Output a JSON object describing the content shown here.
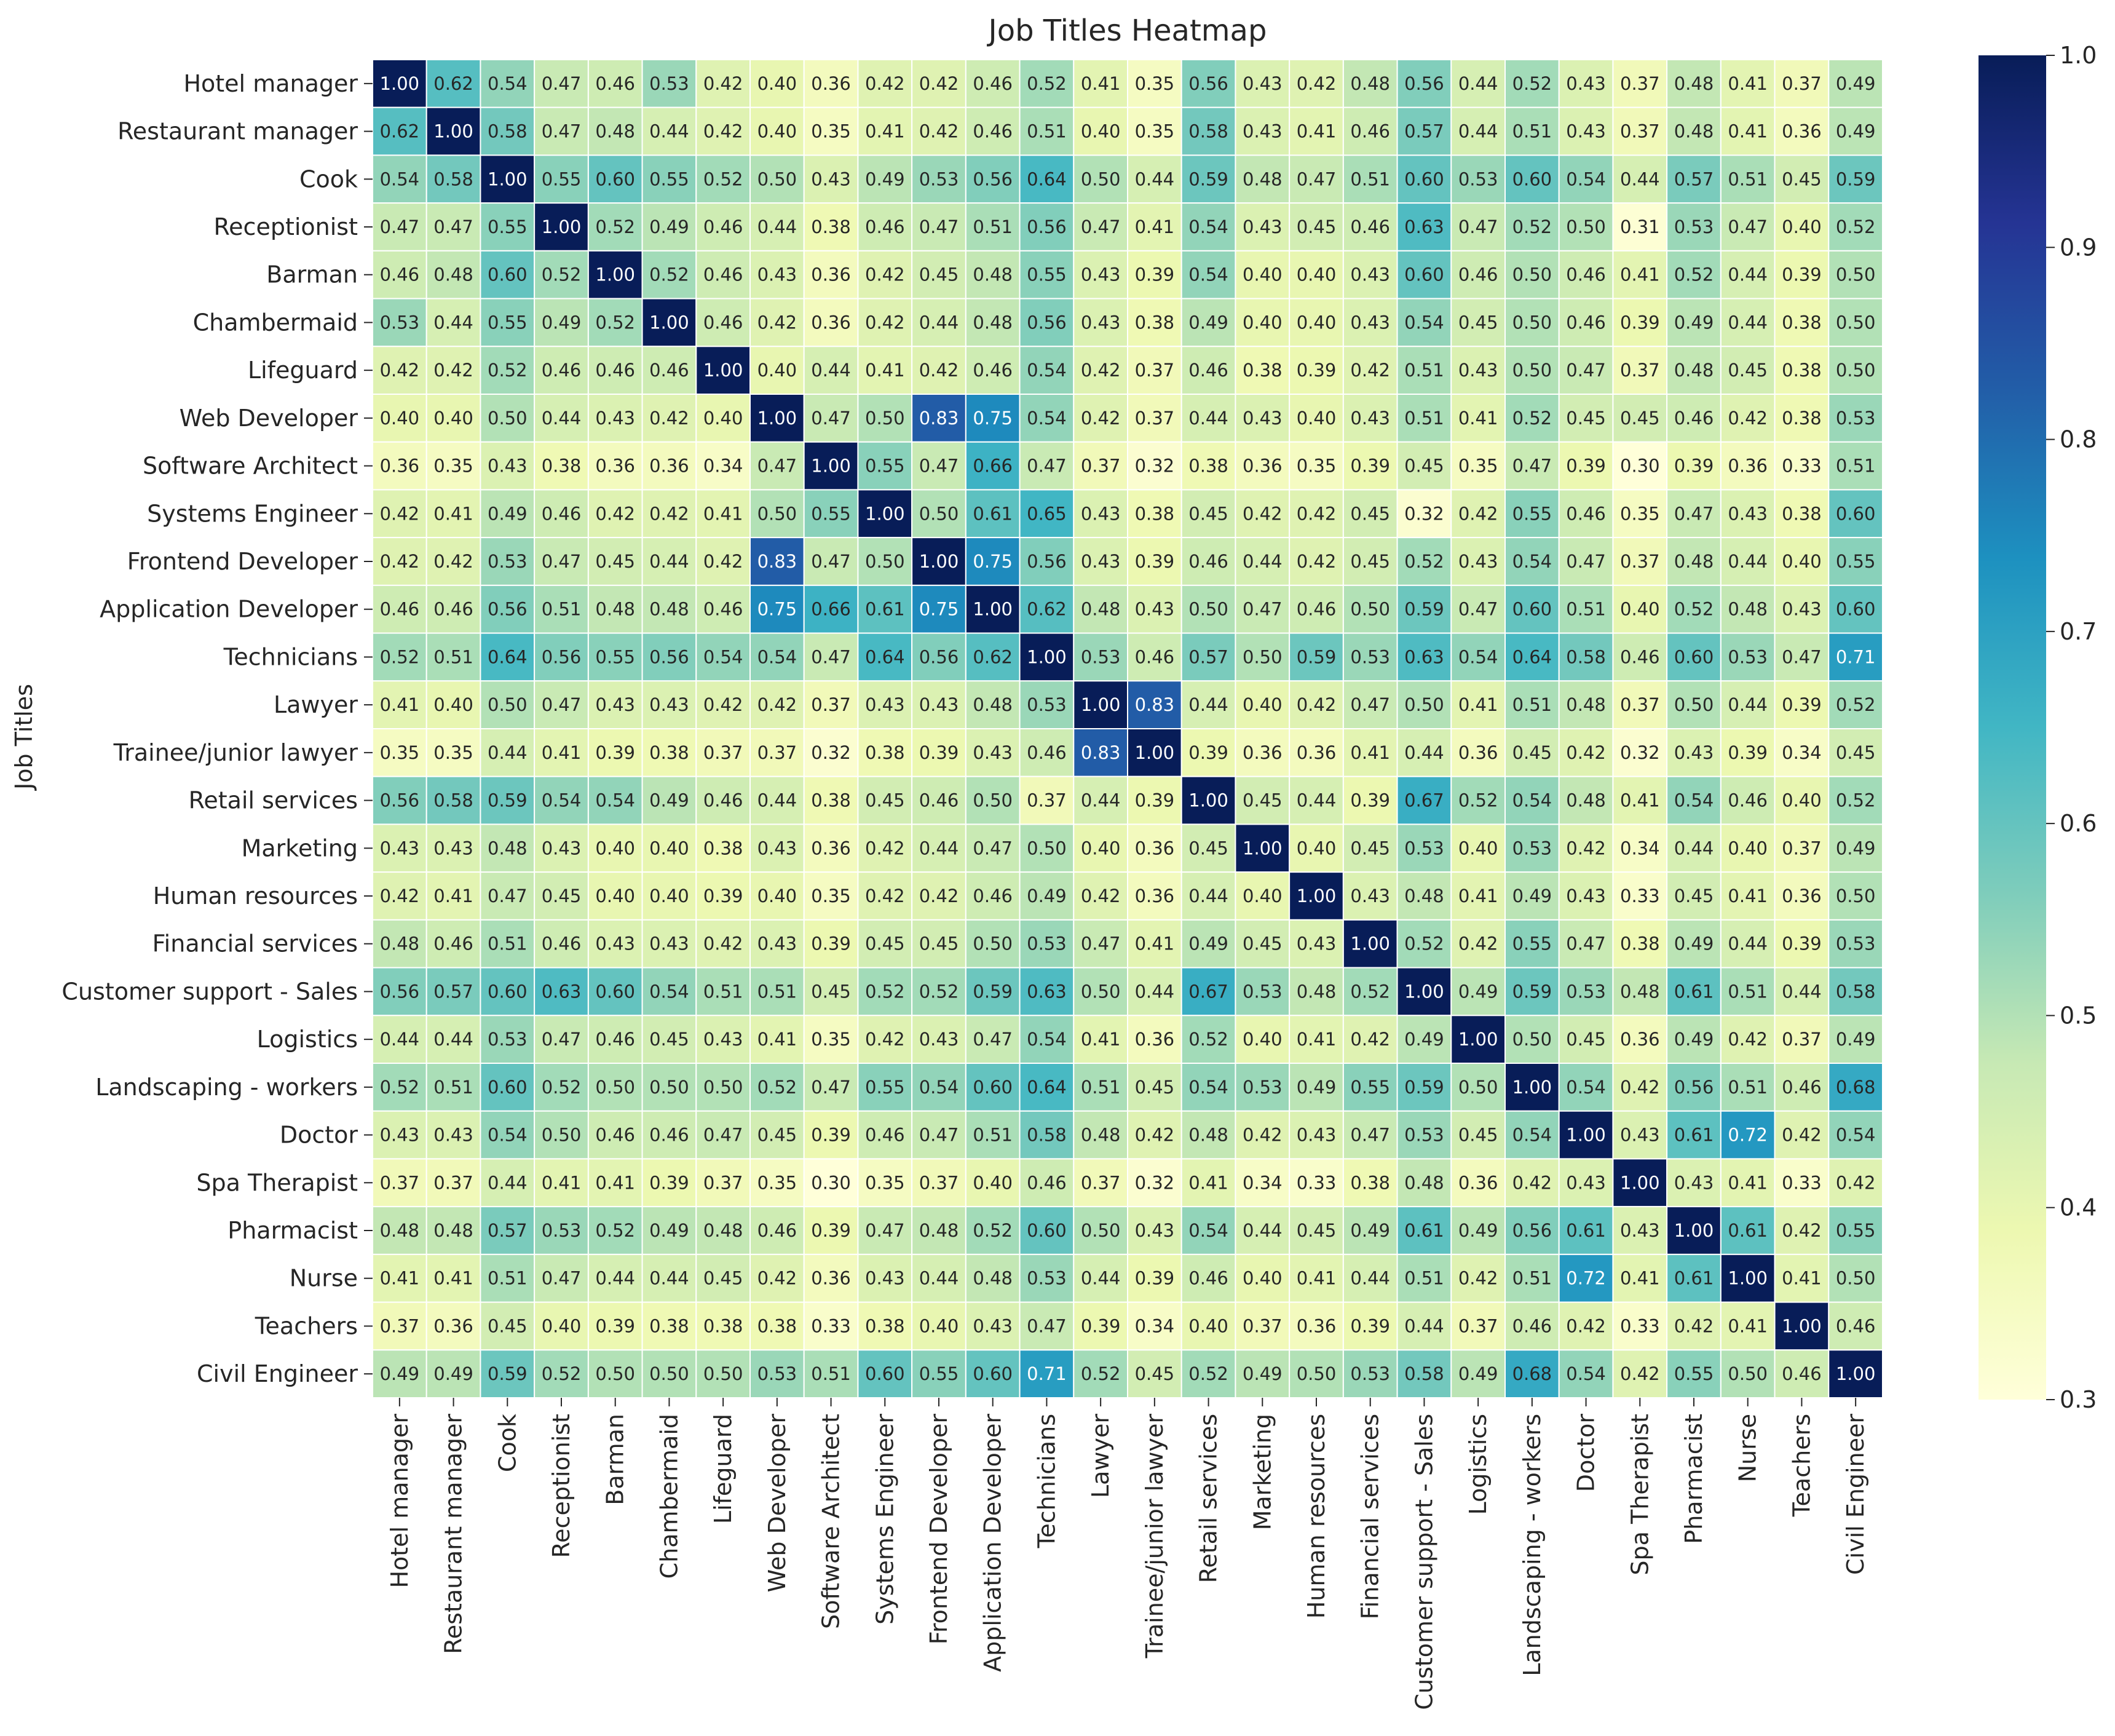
{
  "chart_data": {
    "type": "heatmap",
    "title": "Job Titles Heatmap",
    "ylabel": "Job Titles",
    "xlabel": "",
    "labels": [
      "Hotel manager",
      "Restaurant manager",
      "Cook",
      "Receptionist",
      "Barman",
      "Chambermaid",
      "Lifeguard",
      "Web Developer",
      "Software Architect",
      "Systems Engineer",
      "Frontend Developer",
      "Application Developer",
      "Technicians",
      "Lawyer",
      "Trainee/junior lawyer",
      "Retail services",
      "Marketing",
      "Human resources",
      "Financial services",
      "Customer support - Sales",
      "Logistics",
      "Landscaping - workers",
      "Doctor",
      "Spa Therapist",
      "Pharmacist",
      "Nurse",
      "Teachers",
      "Civil Engineer"
    ],
    "matrix": [
      [
        1.0,
        0.62,
        0.54,
        0.47,
        0.46,
        0.53,
        0.42,
        0.4,
        0.36,
        0.42,
        0.42,
        0.46,
        0.52,
        0.41,
        0.35,
        0.56,
        0.43,
        0.42,
        0.48,
        0.56,
        0.44,
        0.52,
        0.43,
        0.37,
        0.48,
        0.41,
        0.37,
        0.49
      ],
      [
        0.62,
        1.0,
        0.58,
        0.47,
        0.48,
        0.44,
        0.42,
        0.4,
        0.35,
        0.41,
        0.42,
        0.46,
        0.51,
        0.4,
        0.35,
        0.58,
        0.43,
        0.41,
        0.46,
        0.57,
        0.44,
        0.51,
        0.43,
        0.37,
        0.48,
        0.41,
        0.36,
        0.49
      ],
      [
        0.54,
        0.58,
        1.0,
        0.55,
        0.6,
        0.55,
        0.52,
        0.5,
        0.43,
        0.49,
        0.53,
        0.56,
        0.64,
        0.5,
        0.44,
        0.59,
        0.48,
        0.47,
        0.51,
        0.6,
        0.53,
        0.6,
        0.54,
        0.44,
        0.57,
        0.51,
        0.45,
        0.59
      ],
      [
        0.47,
        0.47,
        0.55,
        1.0,
        0.52,
        0.49,
        0.46,
        0.44,
        0.38,
        0.46,
        0.47,
        0.51,
        0.56,
        0.47,
        0.41,
        0.54,
        0.43,
        0.45,
        0.46,
        0.63,
        0.47,
        0.52,
        0.5,
        0.31,
        0.53,
        0.47,
        0.4,
        0.52
      ],
      [
        0.46,
        0.48,
        0.6,
        0.52,
        1.0,
        0.52,
        0.46,
        0.43,
        0.36,
        0.42,
        0.45,
        0.48,
        0.55,
        0.43,
        0.39,
        0.54,
        0.4,
        0.4,
        0.43,
        0.6,
        0.46,
        0.5,
        0.46,
        0.41,
        0.52,
        0.44,
        0.39,
        0.5
      ],
      [
        0.53,
        0.44,
        0.55,
        0.49,
        0.52,
        1.0,
        0.46,
        0.42,
        0.36,
        0.42,
        0.44,
        0.48,
        0.56,
        0.43,
        0.38,
        0.49,
        0.4,
        0.4,
        0.43,
        0.54,
        0.45,
        0.5,
        0.46,
        0.39,
        0.49,
        0.44,
        0.38,
        0.5
      ],
      [
        0.42,
        0.42,
        0.52,
        0.46,
        0.46,
        0.46,
        1.0,
        0.4,
        0.44,
        0.41,
        0.42,
        0.46,
        0.54,
        0.42,
        0.37,
        0.46,
        0.38,
        0.39,
        0.42,
        0.51,
        0.43,
        0.5,
        0.47,
        0.37,
        0.48,
        0.45,
        0.38,
        0.5
      ],
      [
        0.4,
        0.4,
        0.5,
        0.44,
        0.43,
        0.42,
        0.4,
        1.0,
        0.47,
        0.5,
        0.83,
        0.75,
        0.54,
        0.42,
        0.37,
        0.44,
        0.43,
        0.4,
        0.43,
        0.51,
        0.41,
        0.52,
        0.45,
        0.45,
        0.46,
        0.42,
        0.38,
        0.53
      ],
      [
        0.36,
        0.35,
        0.43,
        0.38,
        0.36,
        0.36,
        0.34,
        0.47,
        1.0,
        0.55,
        0.47,
        0.66,
        0.47,
        0.37,
        0.32,
        0.38,
        0.36,
        0.35,
        0.39,
        0.45,
        0.35,
        0.47,
        0.39,
        0.3,
        0.39,
        0.36,
        0.33,
        0.51
      ],
      [
        0.42,
        0.41,
        0.49,
        0.46,
        0.42,
        0.42,
        0.41,
        0.5,
        0.55,
        1.0,
        0.5,
        0.61,
        0.65,
        0.43,
        0.38,
        0.45,
        0.42,
        0.42,
        0.45,
        0.32,
        0.42,
        0.55,
        0.46,
        0.35,
        0.47,
        0.43,
        0.38,
        0.6
      ],
      [
        0.42,
        0.42,
        0.53,
        0.47,
        0.45,
        0.44,
        0.42,
        0.83,
        0.47,
        0.5,
        1.0,
        0.75,
        0.56,
        0.43,
        0.39,
        0.46,
        0.44,
        0.42,
        0.45,
        0.52,
        0.43,
        0.54,
        0.47,
        0.37,
        0.48,
        0.44,
        0.4,
        0.55
      ],
      [
        0.46,
        0.46,
        0.56,
        0.51,
        0.48,
        0.48,
        0.46,
        0.75,
        0.66,
        0.61,
        0.75,
        1.0,
        0.62,
        0.48,
        0.43,
        0.5,
        0.47,
        0.46,
        0.5,
        0.59,
        0.47,
        0.6,
        0.51,
        0.4,
        0.52,
        0.48,
        0.43,
        0.6
      ],
      [
        0.52,
        0.51,
        0.64,
        0.56,
        0.55,
        0.56,
        0.54,
        0.54,
        0.47,
        0.64,
        0.56,
        0.62,
        1.0,
        0.53,
        0.46,
        0.57,
        0.5,
        0.59,
        0.53,
        0.63,
        0.54,
        0.64,
        0.58,
        0.46,
        0.6,
        0.53,
        0.47,
        0.71
      ],
      [
        0.41,
        0.4,
        0.5,
        0.47,
        0.43,
        0.43,
        0.42,
        0.42,
        0.37,
        0.43,
        0.43,
        0.48,
        0.53,
        1.0,
        0.83,
        0.44,
        0.4,
        0.42,
        0.47,
        0.5,
        0.41,
        0.51,
        0.48,
        0.37,
        0.5,
        0.44,
        0.39,
        0.52
      ],
      [
        0.35,
        0.35,
        0.44,
        0.41,
        0.39,
        0.38,
        0.37,
        0.37,
        0.32,
        0.38,
        0.39,
        0.43,
        0.46,
        0.83,
        1.0,
        0.39,
        0.36,
        0.36,
        0.41,
        0.44,
        0.36,
        0.45,
        0.42,
        0.32,
        0.43,
        0.39,
        0.34,
        0.45
      ],
      [
        0.56,
        0.58,
        0.59,
        0.54,
        0.54,
        0.49,
        0.46,
        0.44,
        0.38,
        0.45,
        0.46,
        0.5,
        0.37,
        0.44,
        0.39,
        1.0,
        0.45,
        0.44,
        0.39,
        0.67,
        0.52,
        0.54,
        0.48,
        0.41,
        0.54,
        0.46,
        0.4,
        0.52
      ],
      [
        0.43,
        0.43,
        0.48,
        0.43,
        0.4,
        0.4,
        0.38,
        0.43,
        0.36,
        0.42,
        0.44,
        0.47,
        0.5,
        0.4,
        0.36,
        0.45,
        1.0,
        0.4,
        0.45,
        0.53,
        0.4,
        0.53,
        0.42,
        0.34,
        0.44,
        0.4,
        0.37,
        0.49
      ],
      [
        0.42,
        0.41,
        0.47,
        0.45,
        0.4,
        0.4,
        0.39,
        0.4,
        0.35,
        0.42,
        0.42,
        0.46,
        0.49,
        0.42,
        0.36,
        0.44,
        0.4,
        1.0,
        0.43,
        0.48,
        0.41,
        0.49,
        0.43,
        0.33,
        0.45,
        0.41,
        0.36,
        0.5
      ],
      [
        0.48,
        0.46,
        0.51,
        0.46,
        0.43,
        0.43,
        0.42,
        0.43,
        0.39,
        0.45,
        0.45,
        0.5,
        0.53,
        0.47,
        0.41,
        0.49,
        0.45,
        0.43,
        1.0,
        0.52,
        0.42,
        0.55,
        0.47,
        0.38,
        0.49,
        0.44,
        0.39,
        0.53
      ],
      [
        0.56,
        0.57,
        0.6,
        0.63,
        0.6,
        0.54,
        0.51,
        0.51,
        0.45,
        0.52,
        0.52,
        0.59,
        0.63,
        0.5,
        0.44,
        0.67,
        0.53,
        0.48,
        0.52,
        1.0,
        0.49,
        0.59,
        0.53,
        0.48,
        0.61,
        0.51,
        0.44,
        0.58
      ],
      [
        0.44,
        0.44,
        0.53,
        0.47,
        0.46,
        0.45,
        0.43,
        0.41,
        0.35,
        0.42,
        0.43,
        0.47,
        0.54,
        0.41,
        0.36,
        0.52,
        0.4,
        0.41,
        0.42,
        0.49,
        1.0,
        0.5,
        0.45,
        0.36,
        0.49,
        0.42,
        0.37,
        0.49
      ],
      [
        0.52,
        0.51,
        0.6,
        0.52,
        0.5,
        0.5,
        0.5,
        0.52,
        0.47,
        0.55,
        0.54,
        0.6,
        0.64,
        0.51,
        0.45,
        0.54,
        0.53,
        0.49,
        0.55,
        0.59,
        0.5,
        1.0,
        0.54,
        0.42,
        0.56,
        0.51,
        0.46,
        0.68
      ],
      [
        0.43,
        0.43,
        0.54,
        0.5,
        0.46,
        0.46,
        0.47,
        0.45,
        0.39,
        0.46,
        0.47,
        0.51,
        0.58,
        0.48,
        0.42,
        0.48,
        0.42,
        0.43,
        0.47,
        0.53,
        0.45,
        0.54,
        1.0,
        0.43,
        0.61,
        0.72,
        0.42,
        0.54
      ],
      [
        0.37,
        0.37,
        0.44,
        0.41,
        0.41,
        0.39,
        0.37,
        0.35,
        0.3,
        0.35,
        0.37,
        0.4,
        0.46,
        0.37,
        0.32,
        0.41,
        0.34,
        0.33,
        0.38,
        0.48,
        0.36,
        0.42,
        0.43,
        1.0,
        0.43,
        0.41,
        0.33,
        0.42
      ],
      [
        0.48,
        0.48,
        0.57,
        0.53,
        0.52,
        0.49,
        0.48,
        0.46,
        0.39,
        0.47,
        0.48,
        0.52,
        0.6,
        0.5,
        0.43,
        0.54,
        0.44,
        0.45,
        0.49,
        0.61,
        0.49,
        0.56,
        0.61,
        0.43,
        1.0,
        0.61,
        0.42,
        0.55
      ],
      [
        0.41,
        0.41,
        0.51,
        0.47,
        0.44,
        0.44,
        0.45,
        0.42,
        0.36,
        0.43,
        0.44,
        0.48,
        0.53,
        0.44,
        0.39,
        0.46,
        0.4,
        0.41,
        0.44,
        0.51,
        0.42,
        0.51,
        0.72,
        0.41,
        0.61,
        1.0,
        0.41,
        0.5
      ],
      [
        0.37,
        0.36,
        0.45,
        0.4,
        0.39,
        0.38,
        0.38,
        0.38,
        0.33,
        0.38,
        0.4,
        0.43,
        0.47,
        0.39,
        0.34,
        0.4,
        0.37,
        0.36,
        0.39,
        0.44,
        0.37,
        0.46,
        0.42,
        0.33,
        0.42,
        0.41,
        1.0,
        0.46
      ],
      [
        0.49,
        0.49,
        0.59,
        0.52,
        0.5,
        0.5,
        0.5,
        0.53,
        0.51,
        0.6,
        0.55,
        0.6,
        0.71,
        0.52,
        0.45,
        0.52,
        0.49,
        0.5,
        0.53,
        0.58,
        0.49,
        0.68,
        0.54,
        0.42,
        0.55,
        0.5,
        0.46,
        1.0
      ]
    ],
    "vmin": 0.3,
    "vmax": 1.0,
    "colormap": "YlGnBu",
    "colorbar_ticks": [
      "0.3",
      "0.4",
      "0.5",
      "0.6",
      "0.7",
      "0.8",
      "0.9",
      "1.0"
    ],
    "annotation_format": "0.00",
    "grid_line_color": "#ffffff"
  }
}
